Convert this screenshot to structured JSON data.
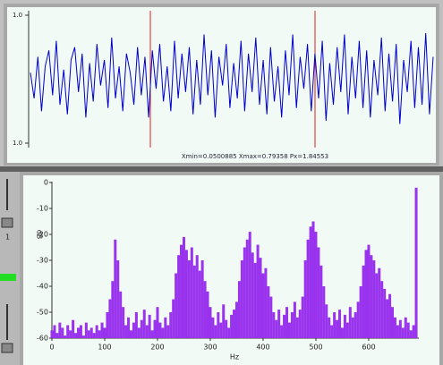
{
  "chart_data": [
    {
      "type": "line",
      "color": "#0000cc",
      "ylim": [
        -1,
        1
      ],
      "yticks": [
        {
          "value": 1,
          "label": "1.0"
        },
        {
          "value": -1,
          "label": "1.0"
        }
      ],
      "status": "Xmin=0.0500885  Xmax=0.79358  Px=1.84553",
      "values": [
        0.1,
        -0.3,
        0.35,
        -0.5,
        0.2,
        0.45,
        -0.25,
        0.6,
        -0.4,
        0.15,
        -0.55,
        0.3,
        0.5,
        -0.2,
        0.4,
        -0.6,
        0.25,
        -0.35,
        0.55,
        -0.1,
        0.3,
        -0.45,
        0.65,
        -0.3,
        0.2,
        -0.5,
        0.4,
        0.1,
        -0.4,
        0.5,
        -0.25,
        0.35,
        -0.6,
        0.45,
        -0.15,
        0.55,
        -0.35,
        0.2,
        -0.5,
        0.6,
        -0.3,
        0.4,
        -0.2,
        0.5,
        -0.55,
        0.3,
        -0.4,
        0.7,
        -0.25,
        0.45,
        -0.6,
        0.35,
        -0.1,
        0.55,
        -0.45,
        0.25,
        -0.3,
        0.6,
        -0.5,
        0.4,
        -0.2,
        0.65,
        -0.4,
        0.3,
        -0.55,
        0.5,
        -0.35,
        0.2,
        -0.6,
        0.45,
        -0.25,
        0.7,
        -0.45,
        0.35,
        -0.15,
        0.55,
        -0.5,
        0.4,
        -0.3,
        0.6,
        -0.65,
        0.25,
        -0.4,
        0.5,
        -0.2,
        0.7,
        -0.55,
        0.35,
        -0.3,
        0.6,
        -0.45,
        0.45,
        -0.6,
        0.3,
        -0.25,
        0.65,
        -0.5,
        0.4,
        -0.35,
        0.55,
        -0.7,
        0.3,
        -0.2,
        0.6,
        -0.45,
        0.5,
        -0.4,
        0.72,
        -0.55,
        0.35
      ]
    },
    {
      "type": "bar",
      "color": "#9933ee",
      "xlabel": "Hz",
      "ylabel": "dB",
      "xlim": [
        0,
        695
      ],
      "ylim": [
        -60,
        0
      ],
      "xticks": [
        0,
        100,
        200,
        300,
        400,
        500,
        600
      ],
      "yticks": [
        0,
        -10,
        -20,
        -30,
        -40,
        -50,
        -60
      ],
      "x": [
        0,
        5,
        10,
        15,
        20,
        25,
        30,
        35,
        40,
        45,
        50,
        55,
        60,
        65,
        70,
        75,
        80,
        85,
        90,
        95,
        100,
        105,
        110,
        115,
        120,
        125,
        130,
        135,
        140,
        145,
        150,
        155,
        160,
        165,
        170,
        175,
        180,
        185,
        190,
        195,
        200,
        205,
        210,
        215,
        220,
        225,
        230,
        235,
        240,
        245,
        250,
        255,
        260,
        265,
        270,
        275,
        280,
        285,
        290,
        295,
        300,
        305,
        310,
        315,
        320,
        325,
        330,
        335,
        340,
        345,
        350,
        355,
        360,
        365,
        370,
        375,
        380,
        385,
        390,
        395,
        400,
        405,
        410,
        415,
        420,
        425,
        430,
        435,
        440,
        445,
        450,
        455,
        460,
        465,
        470,
        475,
        480,
        485,
        490,
        495,
        500,
        505,
        510,
        515,
        520,
        525,
        530,
        535,
        540,
        545,
        550,
        555,
        560,
        565,
        570,
        575,
        580,
        585,
        590,
        595,
        600,
        605,
        610,
        615,
        620,
        625,
        630,
        635,
        640,
        645,
        650,
        655,
        660,
        665,
        670,
        675,
        680,
        685,
        690
      ],
      "values": [
        -57,
        -55,
        -58,
        -54,
        -56,
        -59,
        -55,
        -57,
        -53,
        -58,
        -56,
        -55,
        -59,
        -54,
        -57,
        -56,
        -58,
        -55,
        -57,
        -54,
        -56,
        -50,
        -45,
        -38,
        -22,
        -30,
        -42,
        -48,
        -55,
        -52,
        -57,
        -54,
        -50,
        -56,
        -53,
        -49,
        -55,
        -51,
        -57,
        -53,
        -48,
        -54,
        -56,
        -52,
        -55,
        -50,
        -45,
        -35,
        -28,
        -24,
        -21,
        -26,
        -30,
        -25,
        -32,
        -28,
        -34,
        -30,
        -38,
        -42,
        -48,
        -52,
        -55,
        -50,
        -54,
        -47,
        -53,
        -56,
        -51,
        -49,
        -46,
        -38,
        -30,
        -25,
        -22,
        -19,
        -27,
        -31,
        -24,
        -29,
        -35,
        -33,
        -40,
        -44,
        -50,
        -53,
        -49,
        -55,
        -51,
        -48,
        -54,
        -50,
        -46,
        -52,
        -49,
        -44,
        -30,
        -22,
        -17,
        -15,
        -19,
        -25,
        -32,
        -40,
        -47,
        -52,
        -55,
        -50,
        -53,
        -49,
        -56,
        -51,
        -54,
        -48,
        -52,
        -50,
        -46,
        -40,
        -32,
        -26,
        -24,
        -28,
        -30,
        -35,
        -33,
        -38,
        -41,
        -45,
        -43,
        -48,
        -52,
        -55,
        -53,
        -56,
        -52,
        -54,
        -57,
        -55,
        -2
      ]
    }
  ],
  "controls": {
    "channel": "1"
  }
}
